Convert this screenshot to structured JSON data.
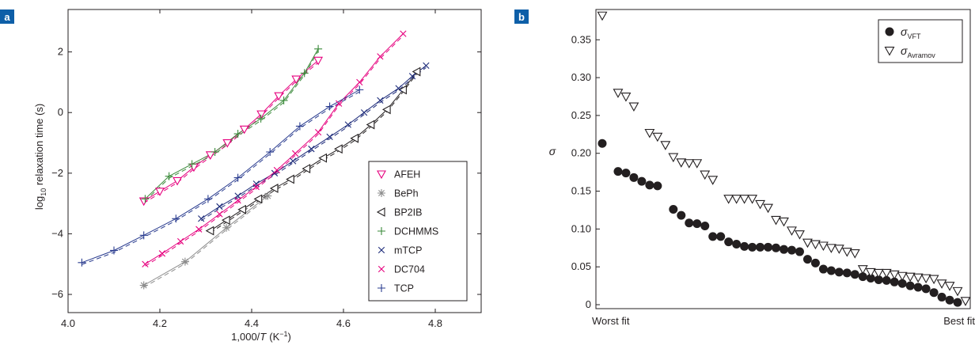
{
  "panels": {
    "a_label": "a",
    "b_label": "b"
  },
  "colors": {
    "panel_label_bg": "#0e5fa8",
    "axis": "#231f20",
    "magenta": "#e6007e",
    "gray": "#8c8c8c",
    "black": "#231f20",
    "green": "#3a8a3a",
    "navy": "#1d2b7a",
    "blue": "#2a3c8f"
  },
  "chart_data": [
    {
      "type": "scatter",
      "panel": "a",
      "xlabel_pre": "1,000/",
      "xlabel_var": "T",
      "xlabel_unit_pre": "(K",
      "xlabel_unit_sup": "−1",
      "xlabel_unit_post": ")",
      "ylabel_pre": "log",
      "ylabel_sub": "10",
      "ylabel_post": " relaxation time (s)",
      "xlim": [
        4.0,
        4.9
      ],
      "ylim": [
        -6.6,
        3.4
      ],
      "xticks": [
        4.0,
        4.2,
        4.4,
        4.6,
        4.8
      ],
      "xtick_labels": [
        "4.0",
        "4.2",
        "4.4",
        "4.6",
        "4.8"
      ],
      "yticks": [
        -6,
        -4,
        -2,
        0,
        2
      ],
      "ytick_labels": [
        "−6",
        "−4",
        "−2",
        "0",
        "2"
      ],
      "legend_position": "lower-right",
      "series": [
        {
          "name": "AFEH",
          "marker": "triangle-down",
          "color": "#e6007e",
          "x": [
            4.165,
            4.2,
            4.238,
            4.274,
            4.31,
            4.347,
            4.384,
            4.421,
            4.459,
            4.497,
            4.545
          ],
          "y": [
            -2.92,
            -2.6,
            -2.25,
            -1.8,
            -1.4,
            -1.0,
            -0.55,
            -0.05,
            0.55,
            1.1,
            1.72
          ]
        },
        {
          "name": "BePh",
          "marker": "asterisk",
          "color": "#8c8c8c",
          "x": [
            4.165,
            4.255,
            4.345,
            4.435
          ],
          "y": [
            -5.7,
            -4.92,
            -3.8,
            -2.75
          ]
        },
        {
          "name": "BP2IB",
          "marker": "triangle-left",
          "color": "#231f20",
          "x": [
            4.31,
            4.345,
            4.38,
            4.415,
            4.45,
            4.485,
            4.52,
            4.556,
            4.59,
            4.625,
            4.66,
            4.695,
            4.73,
            4.76
          ],
          "y": [
            -3.9,
            -3.55,
            -3.2,
            -2.85,
            -2.5,
            -2.2,
            -1.85,
            -1.5,
            -1.2,
            -0.85,
            -0.4,
            0.1,
            0.75,
            1.35
          ]
        },
        {
          "name": "DCHMMS",
          "marker": "plus",
          "color": "#3a8a3a",
          "x": [
            4.168,
            4.22,
            4.27,
            4.32,
            4.37,
            4.42,
            4.47,
            4.515,
            4.545
          ],
          "y": [
            -2.85,
            -2.1,
            -1.7,
            -1.3,
            -0.7,
            -0.2,
            0.4,
            1.3,
            2.1
          ]
        },
        {
          "name": "mTCP",
          "marker": "x",
          "color": "#1d2b7a",
          "x": [
            4.29,
            4.33,
            4.37,
            4.41,
            4.45,
            4.49,
            4.53,
            4.57,
            4.61,
            4.645,
            4.68,
            4.72,
            4.75,
            4.78
          ],
          "y": [
            -3.5,
            -3.1,
            -2.75,
            -2.35,
            -2.0,
            -1.6,
            -1.2,
            -0.8,
            -0.4,
            0.0,
            0.4,
            0.8,
            1.2,
            1.55
          ]
        },
        {
          "name": "DC704",
          "marker": "x",
          "color": "#e6007e",
          "x": [
            4.168,
            4.205,
            4.245,
            4.285,
            4.33,
            4.37,
            4.41,
            4.455,
            4.495,
            4.545,
            4.59,
            4.635,
            4.68,
            4.73
          ],
          "y": [
            -5.0,
            -4.65,
            -4.25,
            -3.85,
            -3.35,
            -2.9,
            -2.45,
            -1.9,
            -1.35,
            -0.65,
            0.3,
            1.0,
            1.85,
            2.6
          ]
        },
        {
          "name": "TCP",
          "marker": "plus",
          "color": "#2a3c8f",
          "x": [
            4.03,
            4.1,
            4.165,
            4.235,
            4.305,
            4.37,
            4.44,
            4.505,
            4.57,
            4.635
          ],
          "y": [
            -4.95,
            -4.55,
            -4.05,
            -3.5,
            -2.85,
            -2.15,
            -1.3,
            -0.45,
            0.2,
            0.75
          ]
        }
      ]
    },
    {
      "type": "scatter",
      "panel": "b",
      "ylabel": "σ",
      "xlabel_left": "Worst fit",
      "xlabel_right": "Best fit",
      "ylim": [
        0,
        0.39
      ],
      "yticks": [
        0,
        0.05,
        0.1,
        0.15,
        0.2,
        0.25,
        0.3,
        0.35
      ],
      "ytick_labels": [
        "0",
        "0.05",
        "0.10",
        "0.15",
        "0.20",
        "0.25",
        "0.30",
        "0.35"
      ],
      "legend_position": "top-right",
      "series": [
        {
          "name": "σ",
          "name_sub": "VFT",
          "marker": "circle-filled",
          "color": "#231f20",
          "x": [
            1,
            3,
            4,
            5,
            6,
            7,
            8,
            10,
            11,
            12,
            13,
            14,
            15,
            16,
            17,
            18,
            19,
            20,
            21,
            22,
            23,
            24,
            25,
            26,
            27,
            28,
            29,
            30,
            31,
            32,
            33,
            34,
            35,
            36,
            37,
            38,
            39,
            40,
            41,
            42,
            43,
            44,
            45,
            46
          ],
          "y": [
            0.213,
            0.176,
            0.174,
            0.168,
            0.163,
            0.158,
            0.157,
            0.126,
            0.118,
            0.108,
            0.107,
            0.104,
            0.09,
            0.09,
            0.083,
            0.08,
            0.077,
            0.076,
            0.076,
            0.076,
            0.075,
            0.073,
            0.072,
            0.07,
            0.06,
            0.055,
            0.047,
            0.045,
            0.043,
            0.042,
            0.04,
            0.037,
            0.035,
            0.033,
            0.032,
            0.03,
            0.028,
            0.025,
            0.023,
            0.021,
            0.016,
            0.01,
            0.006,
            0.003
          ]
        },
        {
          "name": "σ",
          "name_sub": "Avramov",
          "marker": "triangle-down-open",
          "color": "#231f20",
          "x": [
            1,
            3,
            4,
            5,
            7,
            8,
            9,
            10,
            11,
            12,
            13,
            14,
            15,
            17,
            18,
            19,
            20,
            21,
            22,
            23,
            24,
            25,
            26,
            27,
            28,
            29,
            30,
            31,
            32,
            33,
            34,
            35,
            36,
            37,
            38,
            39,
            40,
            41,
            42,
            43,
            44,
            45,
            46,
            47
          ],
          "y": [
            0.382,
            0.28,
            0.275,
            0.262,
            0.227,
            0.222,
            0.211,
            0.195,
            0.188,
            0.187,
            0.187,
            0.172,
            0.165,
            0.14,
            0.14,
            0.14,
            0.14,
            0.133,
            0.128,
            0.112,
            0.11,
            0.098,
            0.093,
            0.082,
            0.08,
            0.078,
            0.075,
            0.074,
            0.07,
            0.068,
            0.047,
            0.043,
            0.042,
            0.042,
            0.04,
            0.038,
            0.037,
            0.036,
            0.035,
            0.034,
            0.028,
            0.025,
            0.018,
            0.005
          ]
        }
      ]
    }
  ]
}
